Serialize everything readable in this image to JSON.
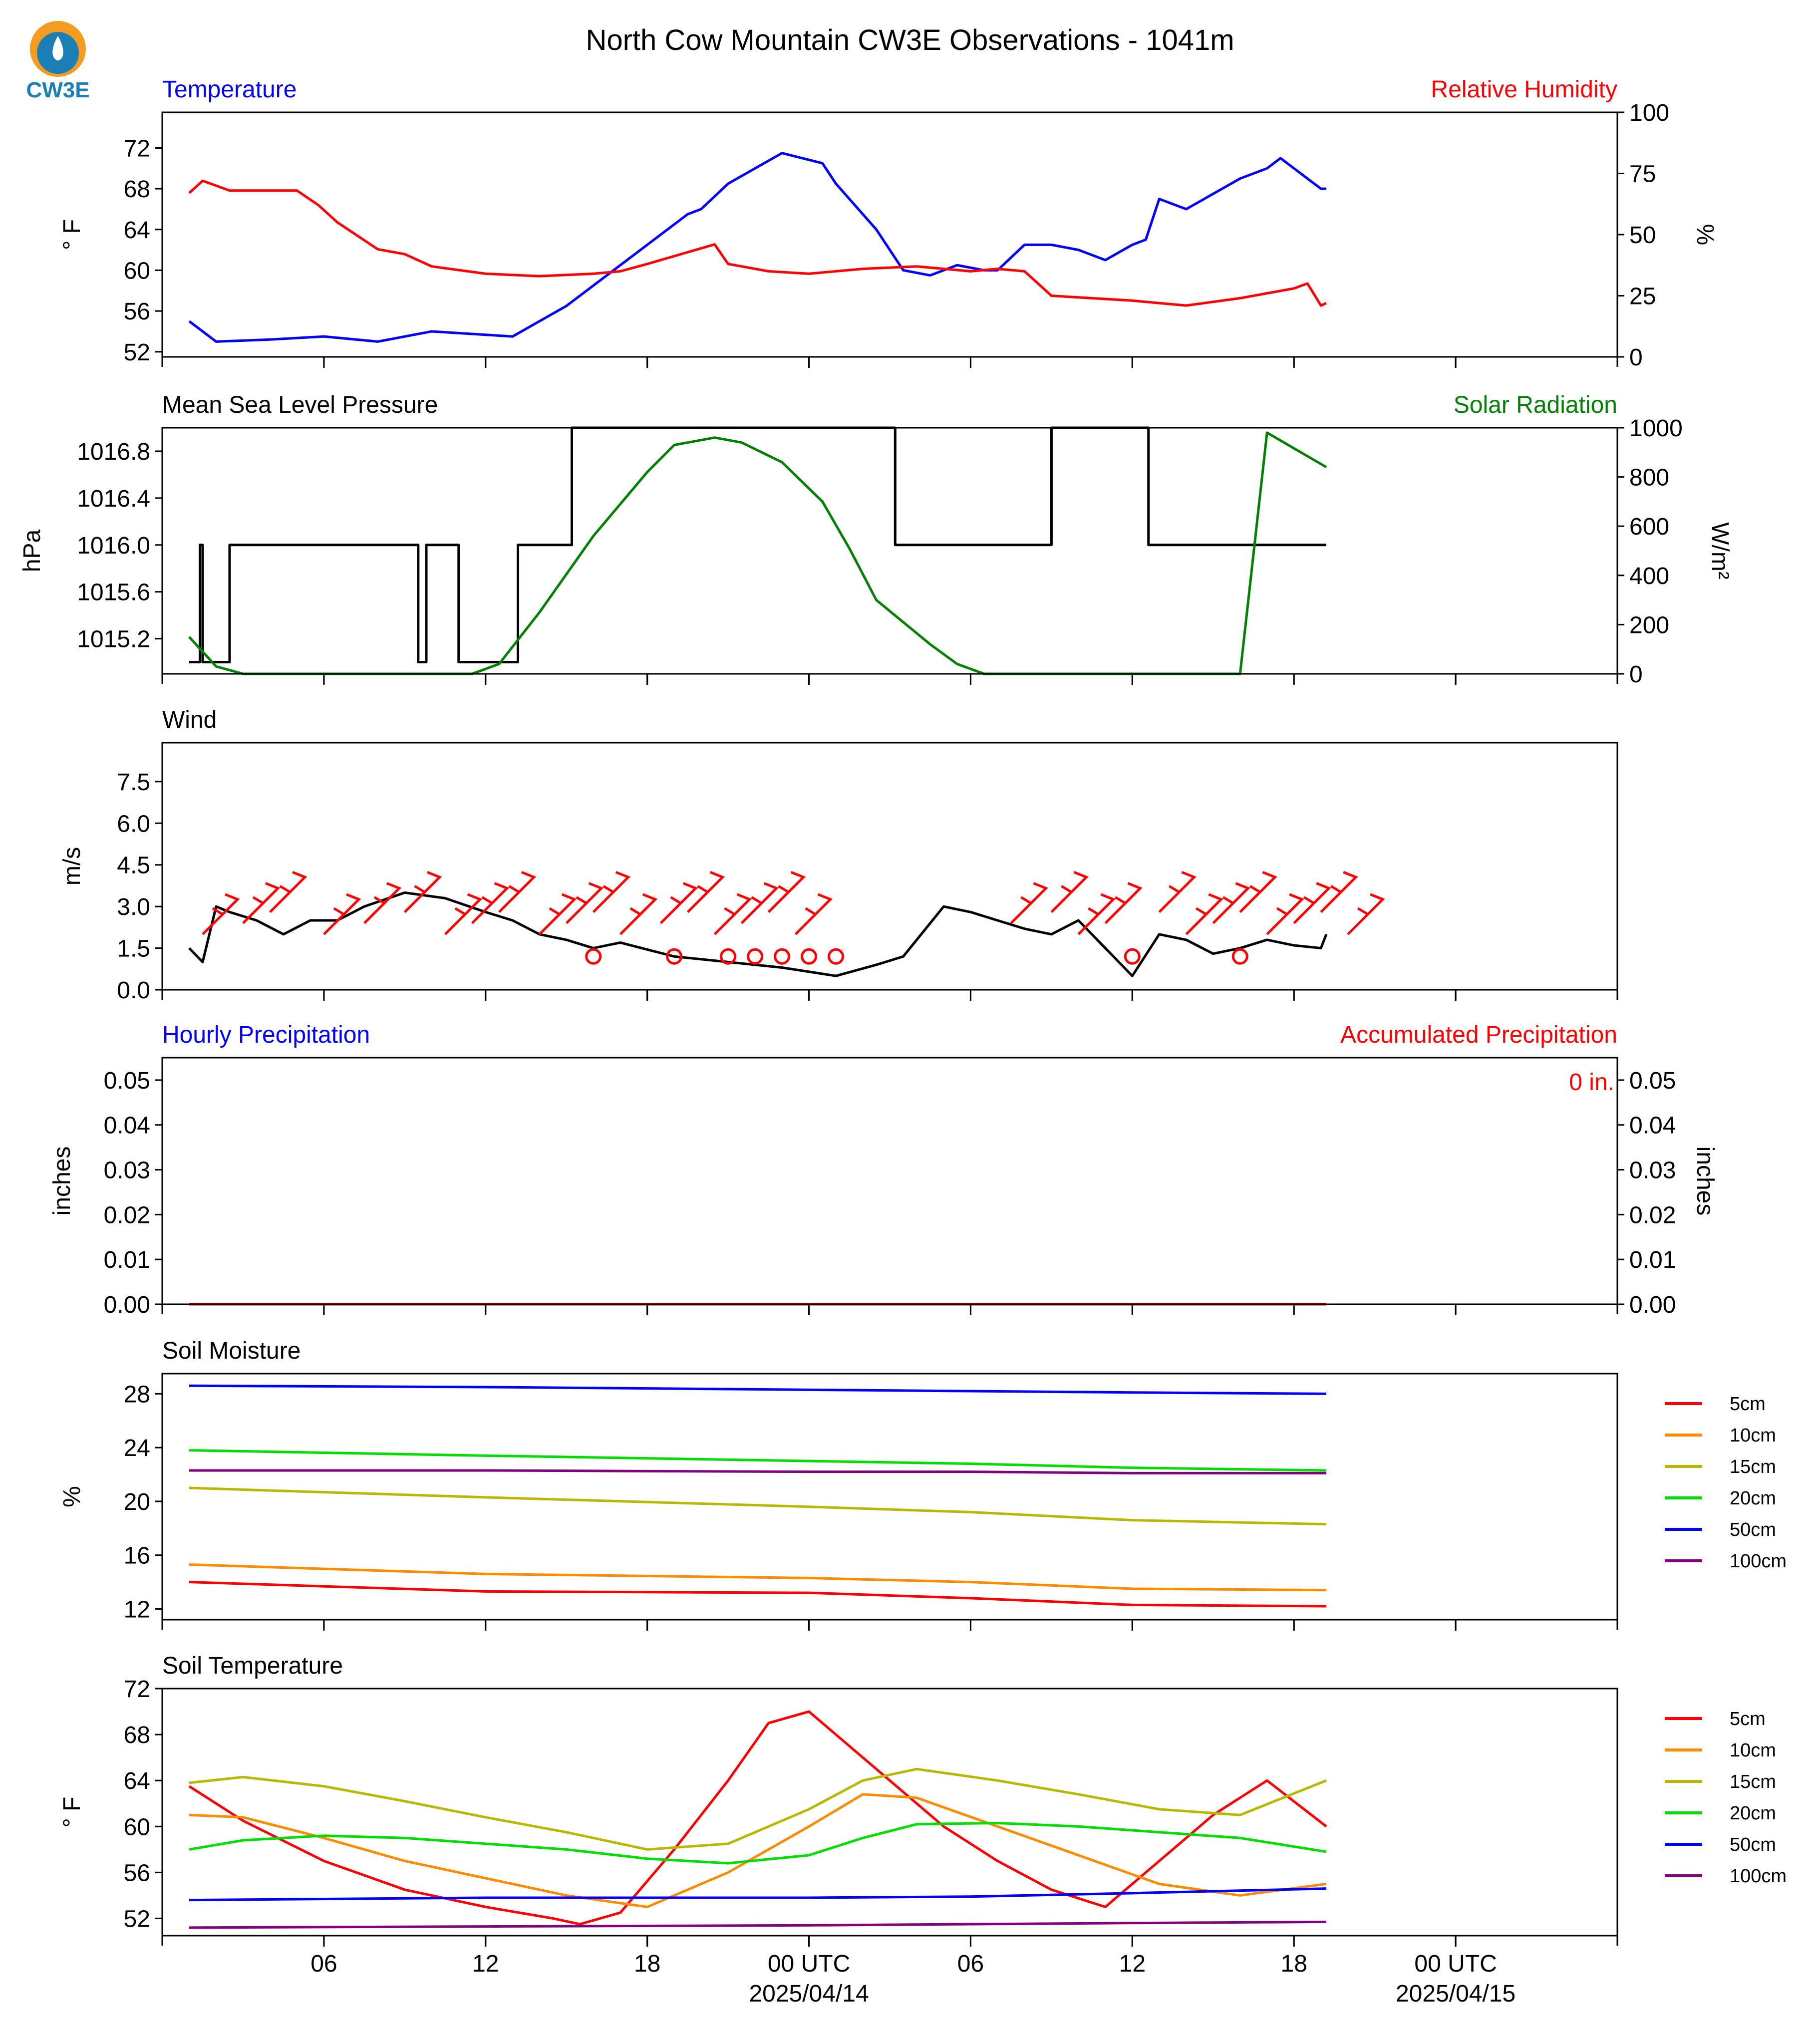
{
  "page": {
    "title": "North Cow Mountain CW3E Observations - 1041m",
    "logo_text": "CW3E",
    "colors": {
      "blue": "#0000ff",
      "red": "#ff0000",
      "green": "#008000",
      "black": "#000000",
      "logo_orange": "#f39c1f",
      "logo_blue": "#1b7fb6"
    }
  },
  "time_axis": {
    "range_hours": [
      -6,
      48
    ],
    "ticks": [
      {
        "h": 0,
        "label": "06"
      },
      {
        "h": 6,
        "label": "12"
      },
      {
        "h": 12,
        "label": "18"
      },
      {
        "h": 18,
        "label": "00 UTC",
        "sub": "2025/04/14"
      },
      {
        "h": 24,
        "label": "06"
      },
      {
        "h": 30,
        "label": "12"
      },
      {
        "h": 36,
        "label": "18"
      },
      {
        "h": 42,
        "label": "00 UTC",
        "sub": "2025/04/15"
      }
    ]
  },
  "chart_data": [
    {
      "type": "line",
      "left_title": "Temperature",
      "right_title": "Relative Humidity",
      "ylabel": "° F",
      "y2label": "%",
      "ylim": [
        51.5,
        75.5
      ],
      "yticks": [
        "52",
        "56",
        "60",
        "64",
        "68",
        "72"
      ],
      "y2lim": [
        0,
        100
      ],
      "y2ticks": [
        "0",
        "25",
        "50",
        "75",
        "100"
      ],
      "series": [
        {
          "color": "#0000ff",
          "axis": "left",
          "x": [
            -5,
            -4,
            -2,
            0,
            2,
            4,
            7,
            9,
            11,
            12.5,
            13.5,
            14,
            15,
            17,
            18.5,
            19,
            20.5,
            21.5,
            22.5,
            23.5,
            24.5,
            25,
            26,
            27,
            28,
            29,
            30,
            30.5,
            31,
            32,
            33,
            34,
            35,
            35.5,
            37,
            37.2
          ],
          "y": [
            55,
            53,
            53.2,
            53.5,
            53,
            54,
            53.5,
            56.5,
            60.5,
            63.5,
            65.5,
            66,
            68.5,
            71.5,
            70.5,
            68.5,
            64,
            60,
            59.5,
            60.5,
            60,
            60,
            62.5,
            62.5,
            62,
            61,
            62.5,
            63,
            67,
            66,
            67.5,
            69,
            70,
            71,
            68,
            68
          ]
        },
        {
          "color": "#ff0000",
          "axis": "right",
          "x": [
            -5,
            -4.5,
            -3.5,
            -2,
            -1,
            -0.2,
            0.5,
            2,
            3,
            4,
            6,
            8,
            10,
            11,
            12,
            14.5,
            15,
            16,
            16.5,
            18,
            20,
            22,
            24,
            25,
            26,
            27,
            30,
            31,
            32,
            34,
            36,
            36.5,
            37,
            37.2
          ],
          "y": [
            67,
            72,
            68,
            68,
            68,
            62,
            55,
            44,
            42,
            37,
            34,
            33,
            34,
            35,
            38,
            46,
            38,
            36,
            35,
            34,
            36,
            37,
            35,
            36,
            35,
            25,
            23,
            22,
            21,
            24,
            28,
            30,
            21,
            22
          ]
        }
      ]
    },
    {
      "type": "line",
      "left_title": "Mean Sea Level Pressure",
      "right_title": "Solar Radiation",
      "ylabel": "hPa",
      "y2label": "W/m²",
      "ylim": [
        14.9,
        17.0
      ],
      "ytick_values": [
        15.2,
        15.6,
        16.0,
        16.4,
        16.8
      ],
      "yticks": [
        "1015.2",
        "1015.6",
        "1016.0",
        "1016.4",
        "1016.8"
      ],
      "y2lim": [
        0,
        1000
      ],
      "y2ticks": [
        "0",
        "200",
        "400",
        "600",
        "800",
        "1000"
      ],
      "series": [
        {
          "color": "#000000",
          "axis": "left",
          "steps": true,
          "x": [
            -5,
            -4.6,
            -4.5,
            -3.5,
            3.5,
            3.8,
            5,
            6,
            7.2,
            7.5,
            9,
            9.2,
            11,
            21.2,
            21.8,
            27,
            27.4,
            30.6,
            31,
            34.5,
            36.5,
            37.2
          ],
          "y": [
            15.0,
            16.0,
            15.0,
            16.0,
            15.0,
            16.0,
            15.0,
            15.0,
            16.0,
            16.0,
            16.0,
            17.0,
            17.0,
            16.0,
            16.0,
            17.0,
            17.0,
            16.0,
            16.0,
            16.0,
            16.0,
            16.0
          ]
        },
        {
          "color": "#008000",
          "axis": "right",
          "x": [
            -5,
            -4,
            -3,
            5.5,
            6.5,
            8,
            10,
            12,
            13,
            14.5,
            15.5,
            17,
            18.5,
            19.5,
            20.5,
            22.5,
            23.5,
            24.5,
            25.5,
            26.5,
            27,
            28,
            29,
            30.5,
            31.5,
            33.5,
            34,
            35,
            37.2
          ],
          "y": [
            150,
            30,
            0,
            0,
            40,
            250,
            560,
            820,
            930,
            960,
            940,
            860,
            700,
            510,
            300,
            120,
            40,
            0,
            0,
            0,
            0,
            0,
            0,
            0,
            0,
            0,
            0,
            980,
            840
          ]
        }
      ]
    },
    {
      "type": "line",
      "left_title": "Wind",
      "ylabel": "m/s",
      "ylim": [
        0,
        8.9
      ],
      "yticks": [
        "0.0",
        "1.5",
        "3.0",
        "4.5",
        "6.0",
        "7.5"
      ],
      "series": [
        {
          "color": "#000000",
          "axis": "left",
          "x": [
            -5,
            -4.5,
            -4,
            -3.5,
            -2.5,
            -1.5,
            -0.5,
            0.5,
            1.5,
            3,
            4.5,
            6,
            7,
            8,
            9,
            10,
            11,
            13,
            15,
            17,
            19,
            20.5,
            21.5,
            23,
            24,
            25,
            26,
            27,
            28,
            29,
            30,
            31,
            32,
            33,
            34,
            35,
            36,
            37,
            37.2
          ],
          "y": [
            1.5,
            1.0,
            3.0,
            2.8,
            2.5,
            2.0,
            2.5,
            2.5,
            3.0,
            3.5,
            3.3,
            2.8,
            2.5,
            2.0,
            1.8,
            1.5,
            1.7,
            1.2,
            1.0,
            0.8,
            0.5,
            0.9,
            1.2,
            3.0,
            2.8,
            2.5,
            2.2,
            2.0,
            2.5,
            1.5,
            0.5,
            2.0,
            1.8,
            1.3,
            1.5,
            1.8,
            1.6,
            1.5,
            2.0
          ]
        }
      ],
      "barbs_marks": [
        -4.5,
        -3,
        -2,
        0,
        1.5,
        3,
        4.5,
        5.5,
        6.5,
        8,
        9,
        10,
        11,
        12.5,
        13.5,
        14.5,
        15.5,
        16.5,
        17.5,
        25.5,
        27,
        28,
        29,
        31,
        32,
        33,
        34,
        35,
        36,
        37,
        38
      ],
      "calm_marks": [
        10,
        13,
        15,
        16,
        17,
        18,
        19,
        30,
        34
      ]
    },
    {
      "type": "line",
      "left_title": "Hourly Precipitation",
      "right_title": "Accumulated Precipitation",
      "ylabel": "inches",
      "y2label": "inches",
      "accum_label": "0 in.",
      "ylim": [
        0,
        0.055
      ],
      "yticks": [
        "0.00",
        "0.01",
        "0.02",
        "0.03",
        "0.04",
        "0.05"
      ],
      "y2ticks": [
        "0.00",
        "0.01",
        "0.02",
        "0.03",
        "0.04",
        "0.05"
      ],
      "series": [
        {
          "color": "#ff0000",
          "axis": "left",
          "x": [
            -5,
            37.2
          ],
          "y": [
            0,
            0
          ]
        }
      ]
    },
    {
      "type": "line",
      "left_title": "Soil Moisture",
      "ylabel": "%",
      "ylim": [
        11.2,
        29.5
      ],
      "yticks": [
        "12",
        "16",
        "20",
        "24",
        "28"
      ],
      "legend": [
        "5cm",
        "10cm",
        "15cm",
        "20cm",
        "50cm",
        "100cm"
      ],
      "series": [
        {
          "name": "5cm",
          "color": "#ff0000",
          "x": [
            -5,
            6,
            18,
            24,
            30,
            37.2
          ],
          "y": [
            14.0,
            13.3,
            13.2,
            12.8,
            12.3,
            12.2
          ]
        },
        {
          "name": "10cm",
          "color": "#ff8c00",
          "x": [
            -5,
            6,
            18,
            24,
            30,
            37.2
          ],
          "y": [
            15.3,
            14.6,
            14.3,
            14.0,
            13.5,
            13.4
          ]
        },
        {
          "name": "15cm",
          "color": "#b8b800",
          "x": [
            -5,
            6,
            18,
            24,
            30,
            37.2
          ],
          "y": [
            21.0,
            20.3,
            19.6,
            19.2,
            18.6,
            18.3
          ]
        },
        {
          "name": "20cm",
          "color": "#00dd00",
          "x": [
            -5,
            6,
            18,
            24,
            30,
            37.2
          ],
          "y": [
            23.8,
            23.4,
            23.0,
            22.8,
            22.5,
            22.3
          ]
        },
        {
          "name": "50cm",
          "color": "#0000ff",
          "x": [
            -5,
            6,
            18,
            24,
            30,
            37.2
          ],
          "y": [
            28.6,
            28.5,
            28.3,
            28.2,
            28.1,
            28.0
          ]
        },
        {
          "name": "100cm",
          "color": "#800080",
          "x": [
            -5,
            6,
            18,
            24,
            30,
            37.2
          ],
          "y": [
            22.3,
            22.3,
            22.2,
            22.2,
            22.1,
            22.1
          ]
        }
      ]
    },
    {
      "type": "line",
      "left_title": "Soil Temperature",
      "ylabel": "° F",
      "ylim": [
        50.5,
        72.0
      ],
      "yticks": [
        "52",
        "56",
        "60",
        "64",
        "68",
        "72"
      ],
      "legend": [
        "5cm",
        "10cm",
        "15cm",
        "20cm",
        "50cm",
        "100cm"
      ],
      "series": [
        {
          "name": "5cm",
          "color": "#ff0000",
          "x": [
            -5,
            -3,
            0,
            3,
            6,
            8.5,
            9.5,
            11,
            13,
            15,
            16.5,
            18,
            19,
            21,
            23,
            25,
            27,
            29,
            31,
            33,
            35,
            37.2
          ],
          "y": [
            63.5,
            60.5,
            57,
            54.5,
            53,
            52,
            51.5,
            52.5,
            58,
            64,
            69,
            70,
            68,
            64,
            60,
            57,
            54.5,
            53,
            57,
            61,
            64,
            60
          ]
        },
        {
          "name": "10cm",
          "color": "#ff8c00",
          "x": [
            -5,
            -3,
            0,
            3,
            6,
            9,
            12,
            15,
            18,
            20,
            22,
            25,
            28,
            31,
            34,
            37.2
          ],
          "y": [
            61,
            60.8,
            59,
            57,
            55.5,
            54,
            53,
            56,
            60,
            62.8,
            62.5,
            60,
            57.5,
            55,
            54,
            55
          ]
        },
        {
          "name": "15cm",
          "color": "#b8b800",
          "x": [
            -5,
            -3,
            0,
            3,
            6,
            9,
            12,
            15,
            18,
            20,
            22,
            25,
            28,
            31,
            34,
            37.2
          ],
          "y": [
            63.8,
            64.3,
            63.5,
            62.2,
            60.8,
            59.5,
            58,
            58.5,
            61.5,
            64,
            65,
            64,
            62.8,
            61.5,
            61,
            64
          ]
        },
        {
          "name": "20cm",
          "color": "#00dd00",
          "x": [
            -5,
            -3,
            0,
            3,
            6,
            9,
            12,
            15,
            18,
            20,
            22,
            25,
            28,
            31,
            34,
            37.2
          ],
          "y": [
            58,
            58.8,
            59.2,
            59,
            58.5,
            58,
            57.2,
            56.8,
            57.5,
            59,
            60.2,
            60.3,
            60,
            59.5,
            59,
            57.8
          ]
        },
        {
          "name": "50cm",
          "color": "#0000ff",
          "x": [
            -5,
            6,
            18,
            24,
            30,
            37.2
          ],
          "y": [
            53.6,
            53.8,
            53.8,
            53.9,
            54.2,
            54.6
          ]
        },
        {
          "name": "100cm",
          "color": "#800080",
          "x": [
            -5,
            6,
            18,
            24,
            30,
            37.2
          ],
          "y": [
            51.2,
            51.3,
            51.4,
            51.5,
            51.6,
            51.7
          ]
        }
      ]
    }
  ]
}
